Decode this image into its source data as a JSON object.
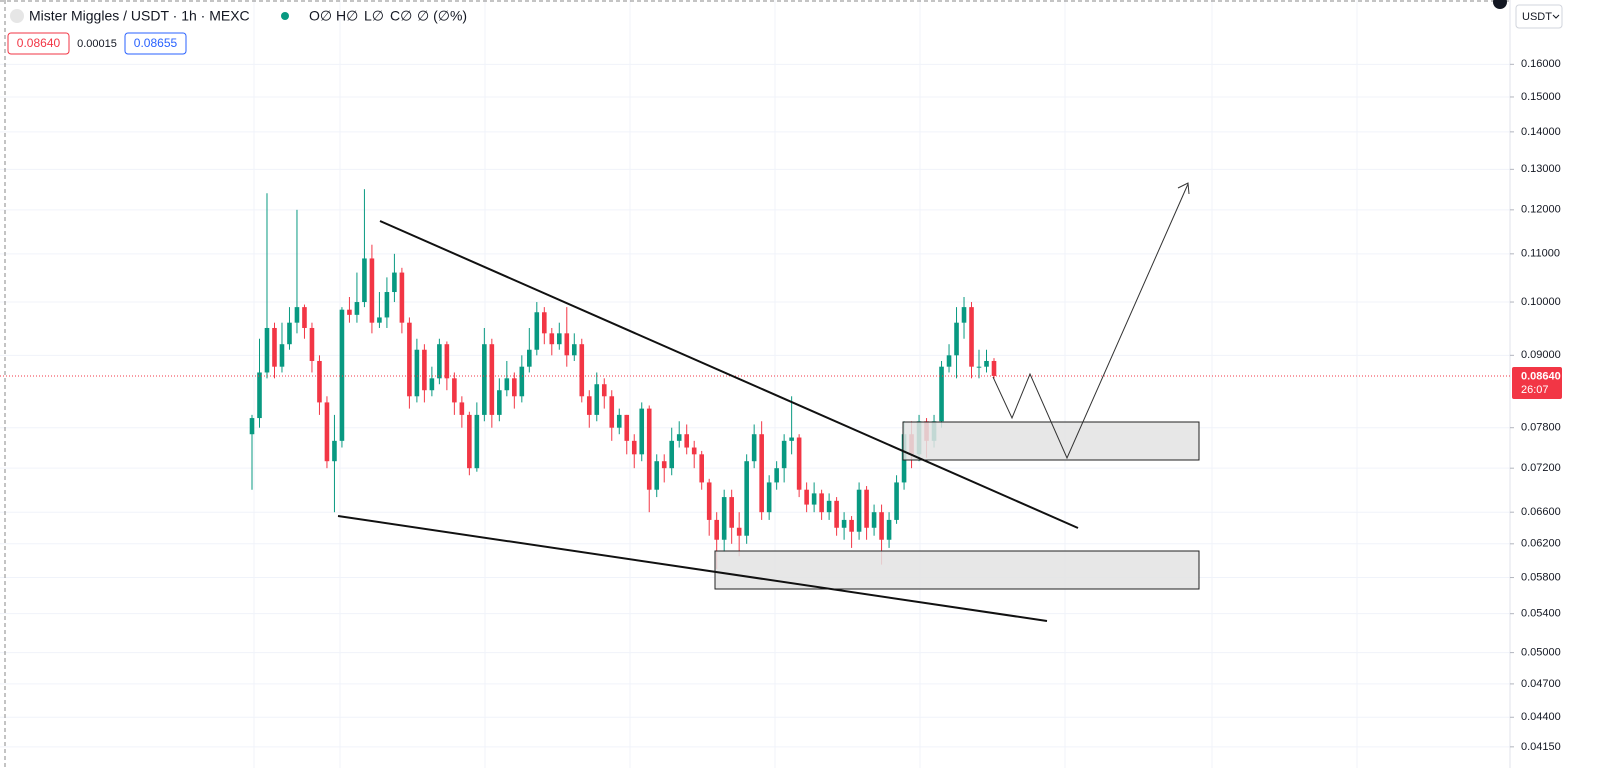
{
  "chart_data": {
    "type": "candlestick",
    "title": "Mister Miggles / USDT · 1h · MEXC",
    "legend_fields": [
      "O∅",
      "H∅",
      "L∅",
      "C∅",
      "∅ (∅%)"
    ],
    "bid": "0.08640",
    "spread": "0.00015",
    "ask": "0.08655",
    "currency": "USDT",
    "last_price": {
      "value": 0.0864,
      "label": "0.08640"
    },
    "countdown": "26:07",
    "up_color": "#089981",
    "down_color": "#f23645",
    "log_scale": true,
    "grid": true,
    "ylim": [
      0.0398,
      0.1817
    ],
    "yticks": [
      {
        "value": 0.16,
        "label": "0.16000"
      },
      {
        "value": 0.15,
        "label": "0.15000"
      },
      {
        "value": 0.14,
        "label": "0.14000"
      },
      {
        "value": 0.13,
        "label": "0.13000"
      },
      {
        "value": 0.12,
        "label": "0.12000"
      },
      {
        "value": 0.11,
        "label": "0.11000"
      },
      {
        "value": 0.1,
        "label": "0.10000"
      },
      {
        "value": 0.09,
        "label": "0.09000"
      },
      {
        "value": 0.078,
        "label": "0.07800"
      },
      {
        "value": 0.072,
        "label": "0.07200"
      },
      {
        "value": 0.066,
        "label": "0.06600"
      },
      {
        "value": 0.062,
        "label": "0.06200"
      },
      {
        "value": 0.058,
        "label": "0.05800"
      },
      {
        "value": 0.054,
        "label": "0.05400"
      },
      {
        "value": 0.05,
        "label": "0.05000"
      },
      {
        "value": 0.047,
        "label": "0.04700"
      },
      {
        "value": 0.044,
        "label": "0.04400"
      },
      {
        "value": 0.0415,
        "label": "0.04150"
      }
    ],
    "categories": [
      null,
      null,
      null,
      null,
      null,
      null,
      null,
      null,
      null,
      null,
      null,
      null,
      null,
      null,
      null,
      null,
      null,
      null,
      null,
      null,
      null,
      null,
      null,
      null,
      null,
      null,
      null,
      null,
      null,
      null,
      null,
      null,
      null,
      null,
      null,
      null,
      null,
      null,
      null,
      null,
      null,
      null,
      null,
      null,
      null,
      null,
      null,
      null,
      null,
      null,
      null,
      null,
      null,
      null,
      null,
      null,
      null,
      null,
      null,
      null,
      null,
      null,
      null,
      null,
      null,
      null,
      null,
      null,
      null,
      null,
      null,
      null,
      null,
      null,
      null,
      null,
      null,
      null,
      null,
      null,
      null,
      null,
      null,
      null,
      null,
      null,
      null,
      null,
      null,
      null,
      null,
      null,
      null,
      null,
      null,
      null,
      null,
      null,
      null,
      null
    ],
    "open": [
      0.077,
      0.0795,
      0.087,
      0.095,
      0.088,
      0.092,
      0.096,
      0.099,
      0.095,
      0.089,
      0.082,
      0.073,
      0.076,
      0.0985,
      0.0975,
      0.1,
      0.109,
      0.096,
      0.097,
      0.102,
      0.106,
      0.096,
      0.083,
      0.091,
      0.084,
      0.086,
      0.092,
      0.086,
      0.082,
      0.08,
      0.072,
      0.08,
      0.092,
      0.08,
      0.084,
      0.086,
      0.083,
      0.088,
      0.091,
      0.098,
      0.094,
      0.092,
      0.094,
      0.09,
      0.092,
      0.083,
      0.08,
      0.085,
      0.083,
      0.078,
      0.08,
      0.076,
      0.074,
      0.081,
      0.069,
      0.073,
      0.072,
      0.076,
      0.077,
      0.075,
      0.074,
      0.07,
      0.065,
      0.0625,
      0.068,
      0.064,
      0.063,
      0.073,
      0.077,
      0.066,
      0.07,
      0.072,
      0.076,
      0.0765,
      0.069,
      0.067,
      0.0685,
      0.066,
      0.0675,
      0.064,
      0.065,
      0.0635,
      0.069,
      0.064,
      0.066,
      0.0625,
      0.065,
      0.07,
      0.077,
      0.074,
      0.079,
      0.076,
      0.079,
      0.088,
      0.09,
      0.096,
      0.099,
      0.088,
      0.088,
      0.089
    ],
    "high": [
      0.08,
      0.093,
      0.124,
      0.096,
      0.096,
      0.099,
      0.12,
      0.0995,
      0.096,
      0.09,
      0.083,
      0.08,
      0.099,
      0.101,
      0.106,
      0.125,
      0.112,
      0.102,
      0.105,
      0.11,
      0.107,
      0.097,
      0.093,
      0.092,
      0.088,
      0.093,
      0.0925,
      0.087,
      0.083,
      0.0805,
      0.082,
      0.095,
      0.093,
      0.086,
      0.089,
      0.087,
      0.09,
      0.095,
      0.1,
      0.099,
      0.095,
      0.096,
      0.099,
      0.094,
      0.093,
      0.084,
      0.087,
      0.086,
      0.084,
      0.081,
      0.08,
      0.077,
      0.082,
      0.0815,
      0.074,
      0.074,
      0.078,
      0.079,
      0.0785,
      0.076,
      0.0745,
      0.0705,
      0.066,
      0.069,
      0.069,
      0.066,
      0.074,
      0.0785,
      0.079,
      0.071,
      0.073,
      0.077,
      0.083,
      0.077,
      0.07,
      0.07,
      0.069,
      0.0685,
      0.068,
      0.066,
      0.0655,
      0.07,
      0.0695,
      0.067,
      0.067,
      0.066,
      0.071,
      0.079,
      0.079,
      0.08,
      0.0795,
      0.08,
      0.089,
      0.092,
      0.099,
      0.101,
      0.1,
      0.091,
      0.091,
      0.0895
    ],
    "low": [
      0.069,
      0.078,
      0.086,
      0.086,
      0.087,
      0.091,
      0.094,
      0.093,
      0.087,
      0.08,
      0.072,
      0.066,
      0.075,
      0.096,
      0.096,
      0.099,
      0.094,
      0.095,
      0.095,
      0.1,
      0.094,
      0.081,
      0.082,
      0.082,
      0.083,
      0.085,
      0.084,
      0.08,
      0.078,
      0.071,
      0.0715,
      0.079,
      0.078,
      0.079,
      0.083,
      0.081,
      0.082,
      0.087,
      0.09,
      0.092,
      0.09,
      0.091,
      0.088,
      0.089,
      0.082,
      0.078,
      0.079,
      0.081,
      0.076,
      0.077,
      0.074,
      0.072,
      0.073,
      0.066,
      0.068,
      0.07,
      0.071,
      0.075,
      0.074,
      0.072,
      0.069,
      0.063,
      0.059,
      0.061,
      0.062,
      0.0605,
      0.062,
      0.072,
      0.065,
      0.065,
      0.069,
      0.07,
      0.074,
      0.068,
      0.066,
      0.066,
      0.065,
      0.065,
      0.063,
      0.0625,
      0.0615,
      0.0625,
      0.0625,
      0.063,
      0.0595,
      0.0615,
      0.0645,
      0.069,
      0.072,
      0.073,
      0.0735,
      0.075,
      0.078,
      0.087,
      0.086,
      0.093,
      0.086,
      0.086,
      0.087,
      0.086
    ],
    "close": [
      0.0795,
      0.087,
      0.095,
      0.088,
      0.092,
      0.096,
      0.099,
      0.095,
      0.089,
      0.082,
      0.073,
      0.076,
      0.0985,
      0.0975,
      0.1,
      0.109,
      0.096,
      0.097,
      0.102,
      0.106,
      0.096,
      0.083,
      0.091,
      0.084,
      0.086,
      0.092,
      0.086,
      0.082,
      0.08,
      0.072,
      0.08,
      0.092,
      0.08,
      0.084,
      0.086,
      0.083,
      0.088,
      0.091,
      0.098,
      0.094,
      0.092,
      0.094,
      0.09,
      0.092,
      0.083,
      0.08,
      0.085,
      0.083,
      0.078,
      0.08,
      0.076,
      0.074,
      0.081,
      0.069,
      0.073,
      0.072,
      0.076,
      0.077,
      0.075,
      0.074,
      0.07,
      0.065,
      0.0625,
      0.068,
      0.064,
      0.063,
      0.073,
      0.077,
      0.066,
      0.07,
      0.072,
      0.076,
      0.0765,
      0.069,
      0.067,
      0.0685,
      0.066,
      0.0675,
      0.064,
      0.065,
      0.0635,
      0.069,
      0.064,
      0.066,
      0.0625,
      0.065,
      0.07,
      0.077,
      0.074,
      0.079,
      0.076,
      0.079,
      0.088,
      0.09,
      0.096,
      0.099,
      0.088,
      0.088,
      0.089,
      0.0864
    ]
  }
}
